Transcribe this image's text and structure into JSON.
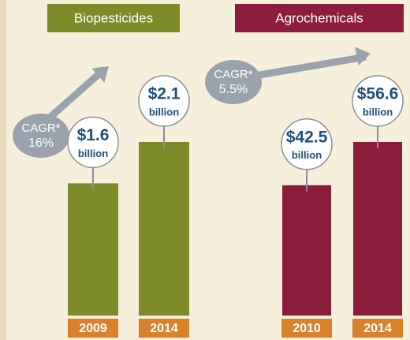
{
  "chart_data": [
    {
      "type": "bar",
      "title": "Biopesticides",
      "color": "#7e8b2b",
      "header_color": "#7e8b2b",
      "categories": [
        "2009",
        "2014"
      ],
      "values": [
        1.6,
        2.1
      ],
      "value_labels": [
        "$1.6",
        "$2.1"
      ],
      "unit": "billion",
      "annotation": {
        "text": "CAGR*",
        "value": 16,
        "value_label": "16%"
      }
    },
    {
      "type": "bar",
      "title": "Agrochemicals",
      "color": "#8c1c3c",
      "header_color": "#8c1c3c",
      "categories": [
        "2010",
        "2014"
      ],
      "values": [
        42.5,
        56.6
      ],
      "value_labels": [
        "$42.5",
        "$56.6"
      ],
      "unit": "billion",
      "annotation": {
        "text": "CAGR*",
        "value": 5.5,
        "value_label": "5.5%"
      }
    }
  ]
}
